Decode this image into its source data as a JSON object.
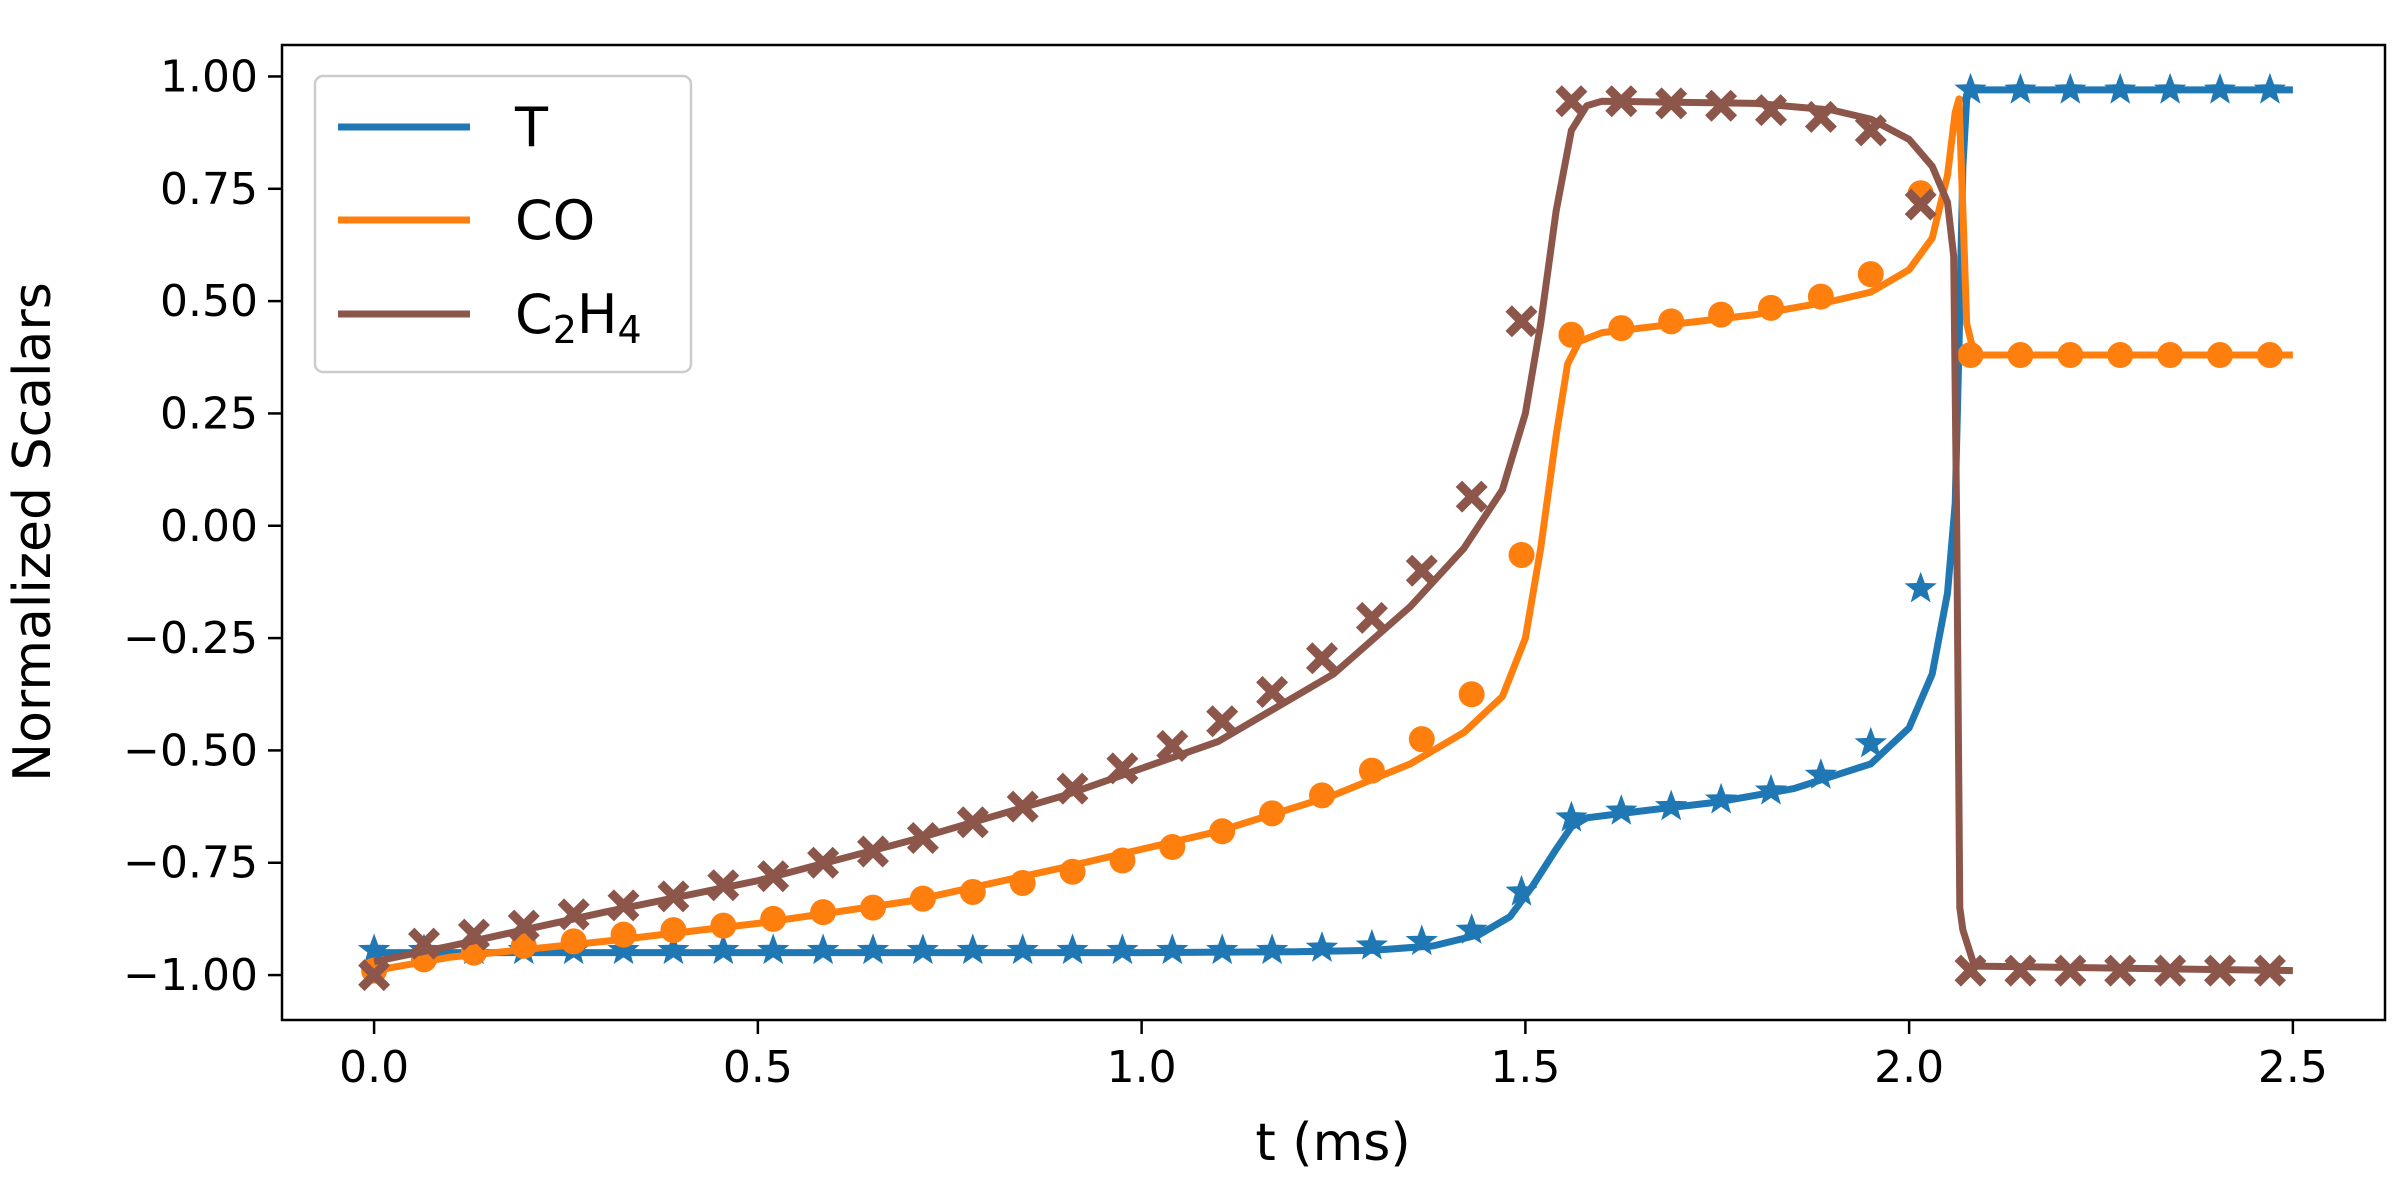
{
  "chart_data": {
    "type": "line",
    "title": "",
    "xlabel": "t (ms)",
    "ylabel": "Normalized Scalars",
    "xlim": [
      -0.12,
      2.62
    ],
    "ylim": [
      -1.1,
      1.07
    ],
    "xticks": [
      0.0,
      0.5,
      1.0,
      1.5,
      2.0,
      2.5
    ],
    "xtick_labels": [
      "0.0",
      "0.5",
      "1.0",
      "1.5",
      "2.0",
      "2.5"
    ],
    "yticks": [
      1.0,
      0.75,
      0.5,
      0.25,
      0.0,
      -0.25,
      -0.5,
      -0.75,
      -1.0
    ],
    "ytick_labels": [
      "1.00",
      "0.75",
      "0.50",
      "0.25",
      "0.00",
      "−0.25",
      "−0.50",
      "−0.75",
      "−1.00"
    ],
    "grid": false,
    "legend_position": "top-left",
    "legend": [
      {
        "label": "T",
        "color": "#1f77b4"
      },
      {
        "label": "CO",
        "color": "#ff7f0e"
      },
      {
        "label_main": "C",
        "sub1": "2",
        "mid": "H",
        "sub2": "4",
        "color": "#8c564b"
      }
    ],
    "series": [
      {
        "name": "T",
        "color": "#1f77b4",
        "marker": "star",
        "line": [
          [
            0,
            -0.95
          ],
          [
            0.5,
            -0.95
          ],
          [
            1.0,
            -0.95
          ],
          [
            1.2,
            -0.948
          ],
          [
            1.3,
            -0.945
          ],
          [
            1.38,
            -0.935
          ],
          [
            1.44,
            -0.91
          ],
          [
            1.48,
            -0.87
          ],
          [
            1.51,
            -0.8
          ],
          [
            1.54,
            -0.72
          ],
          [
            1.56,
            -0.67
          ],
          [
            1.58,
            -0.65
          ],
          [
            1.65,
            -0.635
          ],
          [
            1.75,
            -0.615
          ],
          [
            1.85,
            -0.585
          ],
          [
            1.95,
            -0.53
          ],
          [
            2.0,
            -0.45
          ],
          [
            2.03,
            -0.33
          ],
          [
            2.05,
            -0.15
          ],
          [
            2.06,
            0.05
          ],
          [
            2.065,
            0.4
          ],
          [
            2.07,
            0.8
          ],
          [
            2.075,
            0.95
          ],
          [
            2.08,
            0.97
          ],
          [
            2.5,
            0.97
          ]
        ],
        "markers": [
          [
            0,
            -0.945
          ],
          [
            0.065,
            -0.945
          ],
          [
            0.13,
            -0.945
          ],
          [
            0.195,
            -0.945
          ],
          [
            0.26,
            -0.945
          ],
          [
            0.325,
            -0.945
          ],
          [
            0.39,
            -0.945
          ],
          [
            0.455,
            -0.945
          ],
          [
            0.52,
            -0.945
          ],
          [
            0.585,
            -0.945
          ],
          [
            0.65,
            -0.945
          ],
          [
            0.715,
            -0.945
          ],
          [
            0.78,
            -0.945
          ],
          [
            0.845,
            -0.945
          ],
          [
            0.91,
            -0.945
          ],
          [
            0.975,
            -0.945
          ],
          [
            1.04,
            -0.945
          ],
          [
            1.105,
            -0.945
          ],
          [
            1.17,
            -0.945
          ],
          [
            1.235,
            -0.94
          ],
          [
            1.3,
            -0.935
          ],
          [
            1.365,
            -0.925
          ],
          [
            1.43,
            -0.9
          ],
          [
            1.495,
            -0.815
          ],
          [
            1.56,
            -0.65
          ],
          [
            1.625,
            -0.635
          ],
          [
            1.69,
            -0.625
          ],
          [
            1.755,
            -0.61
          ],
          [
            1.82,
            -0.59
          ],
          [
            1.885,
            -0.555
          ],
          [
            1.95,
            -0.485
          ],
          [
            2.015,
            -0.14
          ],
          [
            2.08,
            0.97
          ],
          [
            2.145,
            0.97
          ],
          [
            2.21,
            0.97
          ],
          [
            2.275,
            0.97
          ],
          [
            2.34,
            0.97
          ],
          [
            2.405,
            0.97
          ],
          [
            2.47,
            0.97
          ]
        ]
      },
      {
        "name": "CO",
        "color": "#ff7f0e",
        "marker": "circle",
        "line": [
          [
            0,
            -0.99
          ],
          [
            0.1,
            -0.96
          ],
          [
            0.3,
            -0.925
          ],
          [
            0.5,
            -0.885
          ],
          [
            0.7,
            -0.835
          ],
          [
            0.9,
            -0.76
          ],
          [
            1.1,
            -0.68
          ],
          [
            1.25,
            -0.6
          ],
          [
            1.35,
            -0.53
          ],
          [
            1.42,
            -0.46
          ],
          [
            1.47,
            -0.38
          ],
          [
            1.5,
            -0.25
          ],
          [
            1.52,
            -0.05
          ],
          [
            1.54,
            0.2
          ],
          [
            1.555,
            0.36
          ],
          [
            1.57,
            0.41
          ],
          [
            1.6,
            0.43
          ],
          [
            1.7,
            0.45
          ],
          [
            1.8,
            0.47
          ],
          [
            1.9,
            0.5
          ],
          [
            1.95,
            0.52
          ],
          [
            2.0,
            0.57
          ],
          [
            2.03,
            0.64
          ],
          [
            2.05,
            0.78
          ],
          [
            2.06,
            0.92
          ],
          [
            2.065,
            0.95
          ],
          [
            2.07,
            0.7
          ],
          [
            2.075,
            0.45
          ],
          [
            2.085,
            0.38
          ],
          [
            2.5,
            0.38
          ]
        ],
        "markers": [
          [
            0,
            -0.99
          ],
          [
            0.065,
            -0.965
          ],
          [
            0.13,
            -0.95
          ],
          [
            0.195,
            -0.935
          ],
          [
            0.26,
            -0.925
          ],
          [
            0.325,
            -0.91
          ],
          [
            0.39,
            -0.9
          ],
          [
            0.455,
            -0.89
          ],
          [
            0.52,
            -0.875
          ],
          [
            0.585,
            -0.86
          ],
          [
            0.65,
            -0.85
          ],
          [
            0.715,
            -0.83
          ],
          [
            0.78,
            -0.815
          ],
          [
            0.845,
            -0.795
          ],
          [
            0.91,
            -0.77
          ],
          [
            0.975,
            -0.745
          ],
          [
            1.04,
            -0.715
          ],
          [
            1.105,
            -0.68
          ],
          [
            1.17,
            -0.64
          ],
          [
            1.235,
            -0.6
          ],
          [
            1.3,
            -0.545
          ],
          [
            1.365,
            -0.475
          ],
          [
            1.43,
            -0.375
          ],
          [
            1.495,
            -0.065
          ],
          [
            1.56,
            0.425
          ],
          [
            1.625,
            0.44
          ],
          [
            1.69,
            0.455
          ],
          [
            1.755,
            0.47
          ],
          [
            1.82,
            0.485
          ],
          [
            1.885,
            0.51
          ],
          [
            1.95,
            0.56
          ],
          [
            2.015,
            0.74
          ],
          [
            2.08,
            0.38
          ],
          [
            2.145,
            0.38
          ],
          [
            2.21,
            0.38
          ],
          [
            2.275,
            0.38
          ],
          [
            2.34,
            0.38
          ],
          [
            2.405,
            0.38
          ],
          [
            2.47,
            0.38
          ]
        ]
      },
      {
        "name": "C2H4",
        "color": "#8c564b",
        "marker": "x",
        "line": [
          [
            0,
            -0.97
          ],
          [
            0.1,
            -0.935
          ],
          [
            0.3,
            -0.86
          ],
          [
            0.5,
            -0.79
          ],
          [
            0.7,
            -0.7
          ],
          [
            0.9,
            -0.6
          ],
          [
            1.1,
            -0.48
          ],
          [
            1.25,
            -0.33
          ],
          [
            1.35,
            -0.18
          ],
          [
            1.42,
            -0.05
          ],
          [
            1.47,
            0.08
          ],
          [
            1.5,
            0.25
          ],
          [
            1.52,
            0.45
          ],
          [
            1.54,
            0.7
          ],
          [
            1.56,
            0.88
          ],
          [
            1.58,
            0.935
          ],
          [
            1.6,
            0.945
          ],
          [
            1.8,
            0.94
          ],
          [
            1.9,
            0.925
          ],
          [
            1.95,
            0.905
          ],
          [
            2.0,
            0.86
          ],
          [
            2.03,
            0.8
          ],
          [
            2.05,
            0.72
          ],
          [
            2.058,
            0.6
          ],
          [
            2.062,
            0.0
          ],
          [
            2.066,
            -0.85
          ],
          [
            2.07,
            -0.9
          ],
          [
            2.085,
            -0.98
          ],
          [
            2.5,
            -0.99
          ]
        ],
        "markers": [
          [
            0,
            -1.0
          ],
          [
            0.065,
            -0.93
          ],
          [
            0.13,
            -0.91
          ],
          [
            0.195,
            -0.89
          ],
          [
            0.26,
            -0.865
          ],
          [
            0.325,
            -0.845
          ],
          [
            0.39,
            -0.825
          ],
          [
            0.455,
            -0.8
          ],
          [
            0.52,
            -0.78
          ],
          [
            0.585,
            -0.75
          ],
          [
            0.65,
            -0.725
          ],
          [
            0.715,
            -0.695
          ],
          [
            0.78,
            -0.66
          ],
          [
            0.845,
            -0.625
          ],
          [
            0.91,
            -0.585
          ],
          [
            0.975,
            -0.54
          ],
          [
            1.04,
            -0.49
          ],
          [
            1.105,
            -0.435
          ],
          [
            1.17,
            -0.37
          ],
          [
            1.235,
            -0.295
          ],
          [
            1.3,
            -0.205
          ],
          [
            1.365,
            -0.1
          ],
          [
            1.43,
            0.065
          ],
          [
            1.495,
            0.455
          ],
          [
            1.56,
            0.945
          ],
          [
            1.625,
            0.945
          ],
          [
            1.69,
            0.94
          ],
          [
            1.755,
            0.935
          ],
          [
            1.82,
            0.925
          ],
          [
            1.885,
            0.91
          ],
          [
            1.95,
            0.88
          ],
          [
            2.015,
            0.715
          ],
          [
            2.08,
            -0.99
          ],
          [
            2.145,
            -0.99
          ],
          [
            2.21,
            -0.99
          ],
          [
            2.275,
            -0.99
          ],
          [
            2.34,
            -0.99
          ],
          [
            2.405,
            -0.99
          ],
          [
            2.47,
            -0.99
          ]
        ]
      }
    ]
  }
}
